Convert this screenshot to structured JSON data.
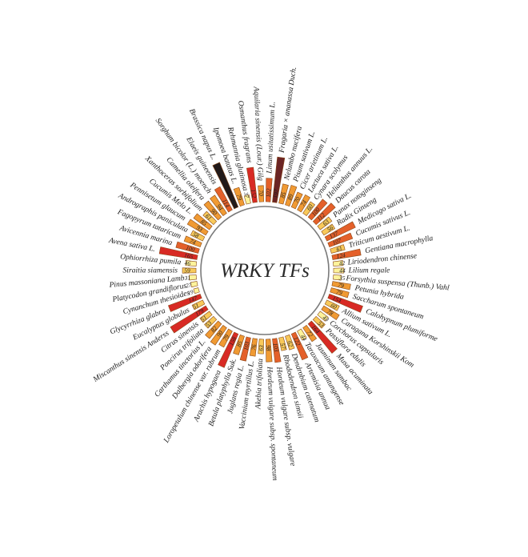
{
  "chart_data": {
    "type": "bar",
    "layout": "circular",
    "title": "WRKY TFs",
    "max_value": 250,
    "colors": {
      "low": "#fdf39b",
      "mid_low": "#f8c95a",
      "mid": "#f09a33",
      "mid_high": "#e4602a",
      "high": "#d82a24",
      "very_high": "#6b2424",
      "extreme": "#221a1a",
      "outline": "#8a4a1a",
      "circle": "#7a7a7a"
    },
    "categories": [
      "Linum usitatissimum L.",
      "Fragaria × ananassa Duch.",
      "Nelumbo nucifera",
      "Pisum sativum L.",
      "Cicer arietinum L.",
      "Lactuca sativa L.",
      "Cynara scolymus",
      "Helianthus annuus L.",
      "Daucus carota",
      "Panax notoginseng",
      "Radix Ginseng",
      "Medicago sativa L.",
      "Cucumis sativus L.",
      "Triticum aestivum L.",
      "Gentiana macrophylla",
      "Liriodendron chinense",
      "Lilium regale",
      "Forsythia suspensa (Thunb.) Vahl",
      "Petunia hybrida",
      "Saccharum spontaneum",
      "Calohypnum plumiforme",
      "Allium sativum L.",
      "Caragana Korshinskii Kom",
      "Corchorus capsularis",
      "Passiflora edulis",
      "Musa acuminata",
      "Jasminum sambac",
      "Taraxacum antungense",
      "Artemisia annua",
      "Dendrobium catenatum",
      "Rhododendron simsii",
      "Hordeum vulgare subsp. vulgare",
      "Hordeum vulgare subsp. spontaneum",
      "Akebia trifoliata",
      "Vaccinium myrtillus L.",
      "Juglans regia L.",
      "Betula platyphylla Suk.",
      "Arachis hypogaea",
      "Loropetalum chinense var. rubrum",
      "Dalbergia odorifera",
      "Carthamus tinctorius L.",
      "Poncirus trifoliata",
      "Citrus sinensis",
      "Miscanthus sinensis Anderss",
      "Eucalyptus globulus",
      "Glycyrrhiza glabra",
      "Cynanchum thesioides",
      "Platycodon grandiflorus",
      "Pinus massoniana Lamb",
      "Siraitia siamensis",
      "Ophiorrhiza pumila",
      "Avena sativa L.",
      "Avicennia marina",
      "Fagopyrum tataricum",
      "Andrographis paniculata",
      "Pennisetum glaucum",
      "Cucumis Melo L.",
      "Xanthoceras sorbifolium",
      "Camellia oleifera",
      "Sorghum bicolor (L.) moench",
      "Elaeis guineensis",
      "Brassica napus L.",
      "Ipomoea batatas L.",
      "Rehmannia glutinosa",
      "Osmanthus fragrans",
      "Aquilaria sinensis (Lour.) Gilg"
    ],
    "values": [
      102,
      197,
      85,
      89,
      70,
      74,
      60,
      100,
      112,
      63,
      56,
      137,
      107,
      61,
      124,
      42,
      44,
      35,
      79,
      79,
      154,
      60,
      78,
      43,
      53,
      164,
      72,
      44,
      122,
      62,
      57,
      103,
      98,
      63,
      76,
      103,
      85,
      158,
      79,
      90,
      82,
      53,
      51,
      179,
      51,
      147,
      19,
      27,
      31,
      59,
      46,
      165,
      100,
      74,
      58,
      93,
      85,
      61,
      90,
      94,
      114,
      210,
      79,
      37,
      152,
      70
    ]
  }
}
